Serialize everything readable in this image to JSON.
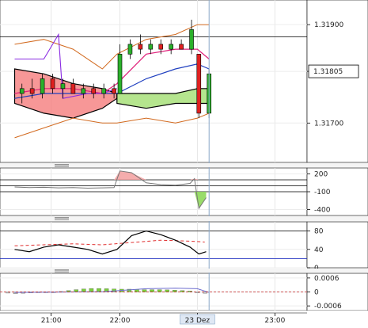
{
  "chart_data": [
    {
      "type": "line",
      "panel": "price",
      "ylim": [
        1.3162,
        1.3195
      ],
      "y_ticks": [
        "1.31900",
        "1.31805",
        "1.31700"
      ],
      "current_price_label": "1.31805",
      "horizontal_line": 1.31875,
      "overlays": [
        "candlesticks",
        "ichimoku-cloud",
        "bollinger-bands",
        "moving-averages"
      ],
      "candles": [
        {
          "x": 0.5,
          "o": 1.3176,
          "h": 1.3178,
          "l": 1.3174,
          "c": 1.3177
        },
        {
          "x": 1.2,
          "o": 1.3177,
          "h": 1.3179,
          "l": 1.3175,
          "c": 1.3176
        },
        {
          "x": 1.9,
          "o": 1.3176,
          "h": 1.318,
          "l": 1.3175,
          "c": 1.3179
        },
        {
          "x": 2.6,
          "o": 1.3179,
          "h": 1.318,
          "l": 1.3176,
          "c": 1.3177
        },
        {
          "x": 3.3,
          "o": 1.3177,
          "h": 1.3179,
          "l": 1.3175,
          "c": 1.3178
        },
        {
          "x": 4.0,
          "o": 1.3178,
          "h": 1.3179,
          "l": 1.3176,
          "c": 1.3176
        },
        {
          "x": 4.7,
          "o": 1.3176,
          "h": 1.3178,
          "l": 1.3175,
          "c": 1.3177
        },
        {
          "x": 5.4,
          "o": 1.3177,
          "h": 1.3178,
          "l": 1.3175,
          "c": 1.3176
        },
        {
          "x": 6.1,
          "o": 1.3176,
          "h": 1.3178,
          "l": 1.3175,
          "c": 1.3177
        },
        {
          "x": 6.8,
          "o": 1.3177,
          "h": 1.3178,
          "l": 1.3175,
          "c": 1.3176
        },
        {
          "x": 7.2,
          "o": 1.3176,
          "h": 1.3186,
          "l": 1.3176,
          "c": 1.3184
        },
        {
          "x": 7.9,
          "o": 1.3184,
          "h": 1.3187,
          "l": 1.3183,
          "c": 1.3186
        },
        {
          "x": 8.6,
          "o": 1.3186,
          "h": 1.3188,
          "l": 1.3184,
          "c": 1.3185
        },
        {
          "x": 9.3,
          "o": 1.3185,
          "h": 1.3187,
          "l": 1.3184,
          "c": 1.3186
        },
        {
          "x": 10.0,
          "o": 1.3186,
          "h": 1.3187,
          "l": 1.3184,
          "c": 1.3185
        },
        {
          "x": 10.7,
          "o": 1.3185,
          "h": 1.3187,
          "l": 1.3184,
          "c": 1.3186
        },
        {
          "x": 11.4,
          "o": 1.3186,
          "h": 1.3187,
          "l": 1.3185,
          "c": 1.3185
        },
        {
          "x": 12.1,
          "o": 1.3185,
          "h": 1.3191,
          "l": 1.3184,
          "c": 1.3189
        },
        {
          "x": 12.6,
          "o": 1.3184,
          "h": 1.3184,
          "l": 1.3171,
          "c": 1.3172
        },
        {
          "x": 13.3,
          "o": 1.3172,
          "h": 1.3181,
          "l": 1.3171,
          "c": 1.318
        }
      ],
      "bollinger_upper": [
        [
          0,
          1.3186
        ],
        [
          2,
          1.3187
        ],
        [
          4,
          1.3185
        ],
        [
          6,
          1.3181
        ],
        [
          7,
          1.3184
        ],
        [
          9,
          1.3187
        ],
        [
          11,
          1.3188
        ],
        [
          12.5,
          1.319
        ],
        [
          13.3,
          1.319
        ]
      ],
      "bollinger_lower": [
        [
          0,
          1.3167
        ],
        [
          2,
          1.3169
        ],
        [
          4,
          1.3171
        ],
        [
          6,
          1.317
        ],
        [
          7,
          1.317
        ],
        [
          9,
          1.3171
        ],
        [
          11,
          1.317
        ],
        [
          12.5,
          1.3171
        ],
        [
          13.3,
          1.3172
        ]
      ],
      "ma_fast": [
        [
          0,
          1.3176
        ],
        [
          2,
          1.3177
        ],
        [
          4,
          1.3177
        ],
        [
          6,
          1.3176
        ],
        [
          7,
          1.3178
        ],
        [
          9,
          1.3184
        ],
        [
          11,
          1.3185
        ],
        [
          12.5,
          1.3185
        ],
        [
          13.3,
          1.3183
        ]
      ],
      "ma_slow": [
        [
          0,
          1.3175
        ],
        [
          2,
          1.3176
        ],
        [
          4,
          1.3176
        ],
        [
          6,
          1.3176
        ],
        [
          7,
          1.3176
        ],
        [
          9,
          1.3179
        ],
        [
          11,
          1.3181
        ],
        [
          12.5,
          1.3182
        ],
        [
          13.3,
          1.3181
        ]
      ],
      "cloud_red": [
        [
          0,
          1.3181,
          1.3174
        ],
        [
          2,
          1.318,
          1.3172
        ],
        [
          4,
          1.3178,
          1.3171
        ],
        [
          6,
          1.3177,
          1.3173
        ],
        [
          7,
          1.3176,
          1.3175
        ]
      ],
      "cloud_green": [
        [
          7,
          1.3176,
          1.3174
        ],
        [
          9,
          1.3176,
          1.3173
        ],
        [
          11,
          1.3176,
          1.3174
        ],
        [
          12.5,
          1.3177,
          1.3174
        ],
        [
          13.3,
          1.3177,
          1.3174
        ]
      ],
      "lagging_line": [
        [
          0,
          1.3183
        ],
        [
          2,
          1.3183
        ],
        [
          3,
          1.3188
        ],
        [
          3.3,
          1.3175
        ],
        [
          5,
          1.3176
        ],
        [
          6,
          1.3176
        ],
        [
          7,
          1.3177
        ]
      ]
    },
    {
      "type": "area",
      "panel": "cci",
      "ylim": [
        -500,
        300
      ],
      "y_ticks": [
        "200",
        "-100",
        "-400"
      ],
      "reference_lines": [
        100,
        0,
        -100
      ],
      "values": [
        [
          0,
          -20
        ],
        [
          1,
          -30
        ],
        [
          2,
          -25
        ],
        [
          3,
          -35
        ],
        [
          4,
          -30
        ],
        [
          5,
          -40
        ],
        [
          6,
          -35
        ],
        [
          6.8,
          -30
        ],
        [
          7.2,
          250
        ],
        [
          8,
          220
        ],
        [
          9,
          50
        ],
        [
          10,
          20
        ],
        [
          11,
          10
        ],
        [
          12,
          40
        ],
        [
          12.3,
          120
        ],
        [
          12.6,
          -380
        ],
        [
          13.1,
          -200
        ]
      ]
    },
    {
      "type": "line",
      "panel": "stochastic",
      "ylim": [
        0,
        100
      ],
      "y_ticks": [
        "80",
        "40",
        "0"
      ],
      "reference_lines": [
        80,
        20
      ],
      "k_values": [
        [
          0,
          40
        ],
        [
          1,
          35
        ],
        [
          2,
          45
        ],
        [
          3,
          50
        ],
        [
          4,
          45
        ],
        [
          5,
          40
        ],
        [
          6,
          30
        ],
        [
          7,
          40
        ],
        [
          8,
          70
        ],
        [
          9,
          80
        ],
        [
          10,
          72
        ],
        [
          11,
          60
        ],
        [
          12,
          45
        ],
        [
          12.6,
          30
        ],
        [
          13.1,
          35
        ]
      ],
      "d_values": [
        [
          0,
          48
        ],
        [
          2,
          50
        ],
        [
          4,
          52
        ],
        [
          6,
          50
        ],
        [
          8,
          55
        ],
        [
          10,
          60
        ],
        [
          12,
          58
        ],
        [
          13,
          56
        ]
      ]
    },
    {
      "type": "bar",
      "panel": "macd",
      "ylim": [
        -0.0008,
        0.0008
      ],
      "y_ticks": [
        "0.0006",
        "0",
        "-0.0006"
      ],
      "histogram": [
        -5e-05,
        -8e-05,
        -6e-05,
        -4e-05,
        -3e-05,
        -2e-05,
        -1e-05,
        2e-05,
        6e-05,
        0.0001,
        0.00013,
        0.00015,
        0.00015,
        0.00014,
        0.00013,
        0.00012,
        0.00012,
        0.00011,
        0.0001,
        0.0001,
        0.0001,
        9e-05,
        8e-05,
        6e-05,
        4e-05,
        -4e-05,
        -6e-05
      ],
      "signal_line": [
        [
          0,
          -2e-05
        ],
        [
          6,
          1e-05
        ],
        [
          9,
          0.00014
        ],
        [
          11,
          0.00016
        ],
        [
          12.5,
          0.00014
        ],
        [
          13.3,
          -2e-05
        ]
      ]
    }
  ],
  "x_axis": {
    "tick_labels": [
      "21:00",
      "22:00",
      "23 Dez",
      "23:00"
    ]
  },
  "colors": {
    "bull_candle": "#2bb02b",
    "bear_candle": "#e02020",
    "cloud_red": "#f47474",
    "cloud_green": "#a8e07a",
    "bollinger": "#d2691e",
    "ma_fast": "#e0207a",
    "ma_slow": "#2040c0",
    "lagging": "#8a2be2",
    "stoch_k": "#000000",
    "stoch_d": "#e03030",
    "cci_positive": "#f29898",
    "cci_negative": "#8ed85a",
    "macd_hist": "#7ccf3a",
    "macd_signal": "#7070d0",
    "cursor_line": "#8aa8c8"
  }
}
